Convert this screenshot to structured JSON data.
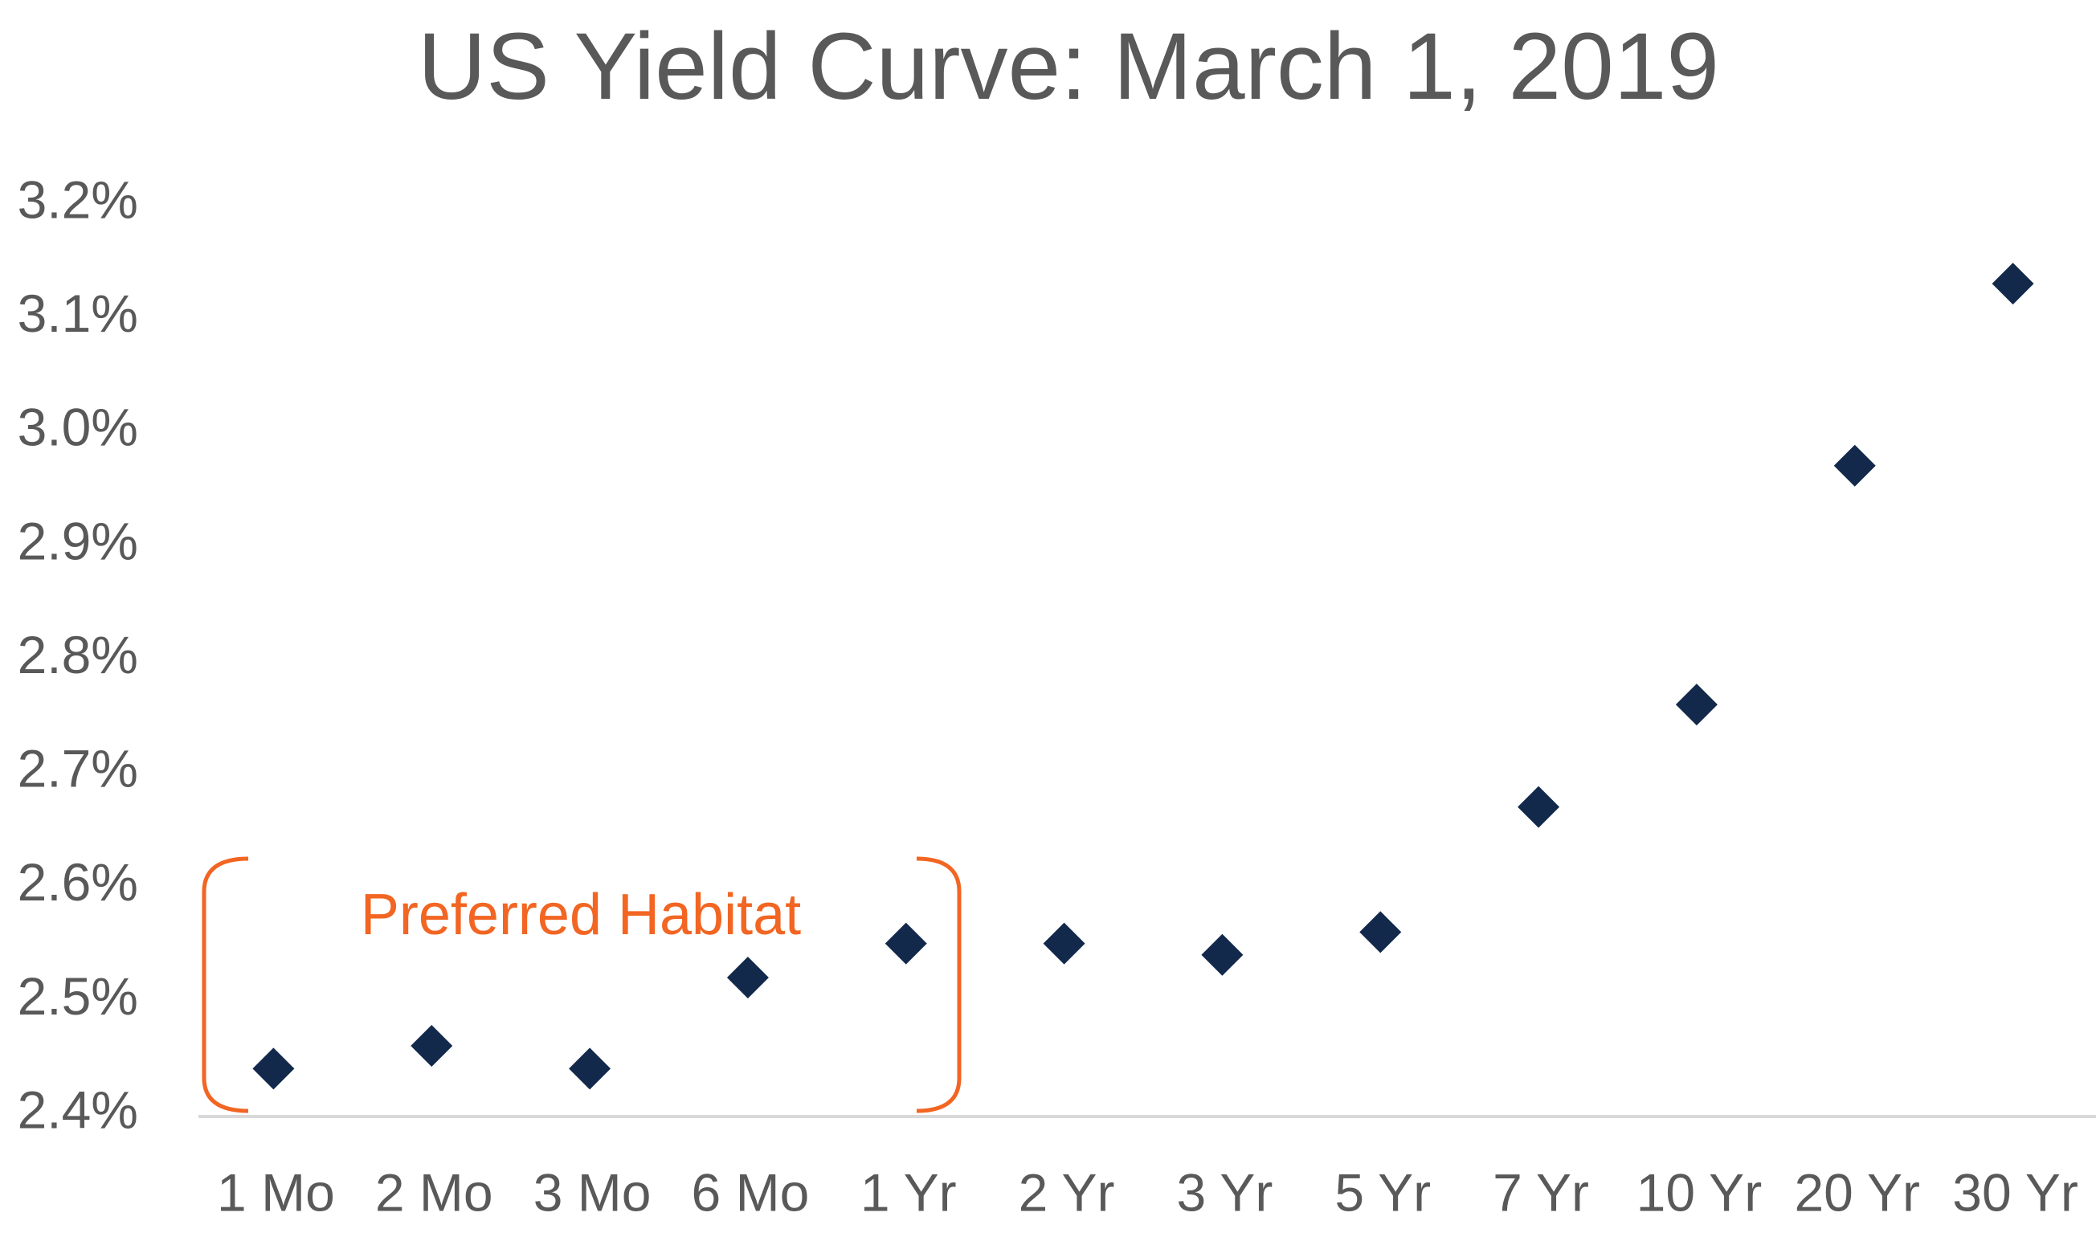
{
  "chart_data": {
    "type": "scatter",
    "title": "US Yield Curve: March 1, 2019",
    "categories": [
      "1 Mo",
      "2 Mo",
      "3 Mo",
      "6 Mo",
      "1 Yr",
      "2 Yr",
      "3 Yr",
      "5 Yr",
      "7 Yr",
      "10 Yr",
      "20 Yr",
      "30 Yr"
    ],
    "values": [
      2.44,
      2.46,
      2.44,
      2.52,
      2.55,
      2.55,
      2.54,
      2.56,
      2.67,
      2.76,
      2.97,
      3.13
    ],
    "color": "#13294b",
    "ylim": [
      2.4,
      3.2
    ],
    "yticks": [
      {
        "value": 2.4,
        "label": "2.4%"
      },
      {
        "value": 2.5,
        "label": "2.5%"
      },
      {
        "value": 2.6,
        "label": "2.6%"
      },
      {
        "value": 2.7,
        "label": "2.7%"
      },
      {
        "value": 2.8,
        "label": "2.8%"
      },
      {
        "value": 2.9,
        "label": "2.9%"
      },
      {
        "value": 3.0,
        "label": "3.0%"
      },
      {
        "value": 3.1,
        "label": "3.1%"
      },
      {
        "value": 3.2,
        "label": "3.2%"
      }
    ],
    "grid": false,
    "annotation": "Preferred Habitat"
  }
}
